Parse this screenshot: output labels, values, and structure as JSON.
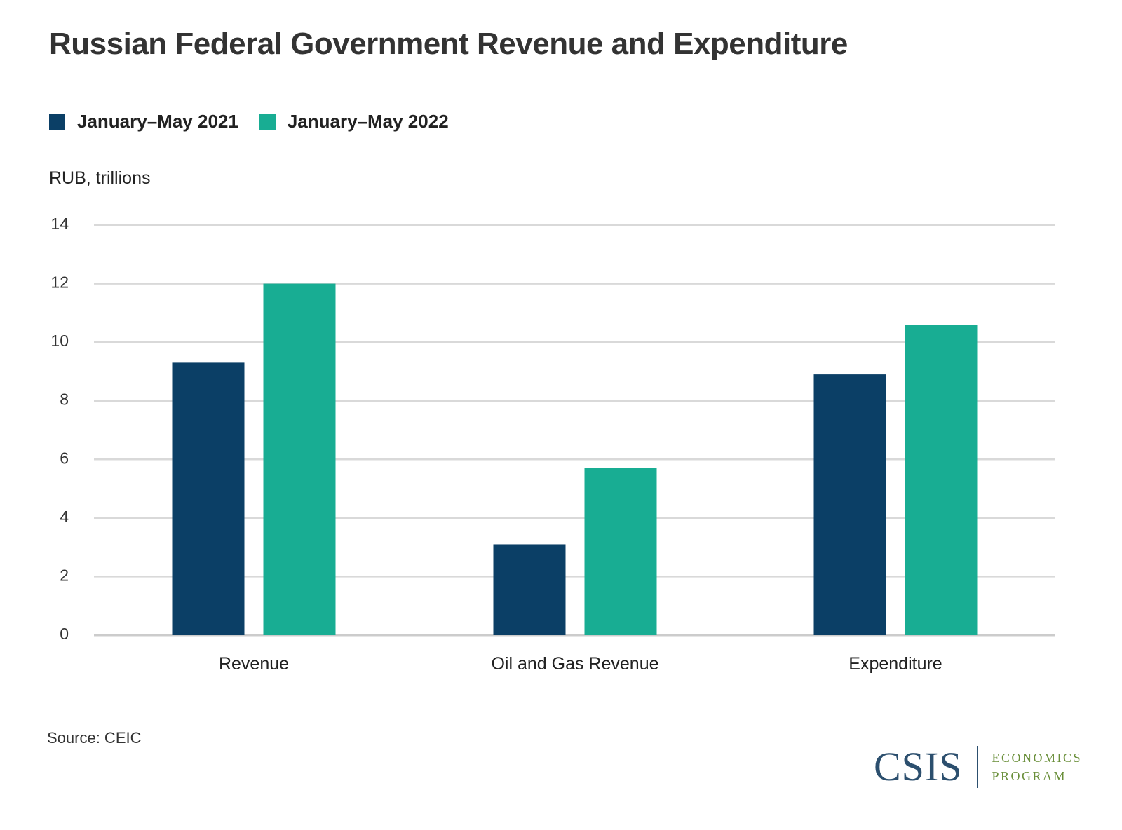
{
  "title": "Russian Federal Government Revenue and Expenditure",
  "unit_label": "RUB, trillions",
  "source": "Source: CEIC",
  "logo": {
    "mark": "CSIS",
    "line1": "ECONOMICS",
    "line2": "PROGRAM"
  },
  "colors": {
    "series_2021": "#0b3f66",
    "series_2022": "#18ad93",
    "grid": "#d9d9d9",
    "axis": "#cccccc"
  },
  "chart_data": {
    "type": "bar",
    "title": "Russian Federal Government Revenue and Expenditure",
    "ylabel": "RUB, trillions",
    "xlabel": "",
    "categories": [
      "Revenue",
      "Oil and Gas Revenue",
      "Expenditure"
    ],
    "series": [
      {
        "name": "January–May 2021",
        "values": [
          9.3,
          3.1,
          8.9
        ]
      },
      {
        "name": "January–May 2022",
        "values": [
          12.0,
          5.7,
          10.6
        ]
      }
    ],
    "ylim": [
      0,
      14
    ],
    "yticks": [
      0,
      2,
      4,
      6,
      8,
      10,
      12,
      14
    ],
    "grid": true,
    "legend": "top-left"
  }
}
